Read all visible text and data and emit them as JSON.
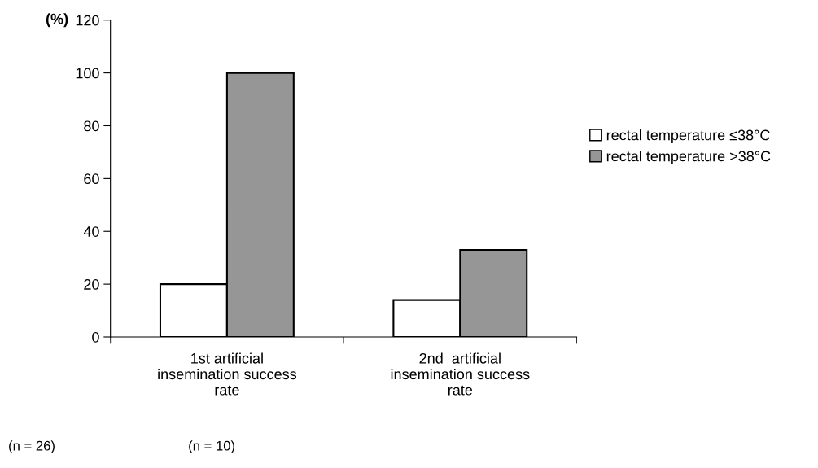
{
  "chart_data": {
    "type": "bar",
    "ylabel": "(%)",
    "categories": [
      "1st artificial\ninsemination success\nrate",
      "2nd  artificial\ninsemination success\nrate"
    ],
    "series": [
      {
        "name": "rectal temperature ≤38°C",
        "color": "#ffffff",
        "values": [
          20,
          14
        ]
      },
      {
        "name": "rectal temperature >38°C",
        "color": "#969696",
        "values": [
          100,
          33
        ]
      }
    ],
    "ylim": [
      0,
      120
    ],
    "yticks": [
      0,
      20,
      40,
      60,
      80,
      100,
      120
    ],
    "grid": false,
    "legend": "right",
    "annotations": [
      "(n = 26)",
      "(n = 10)"
    ]
  }
}
